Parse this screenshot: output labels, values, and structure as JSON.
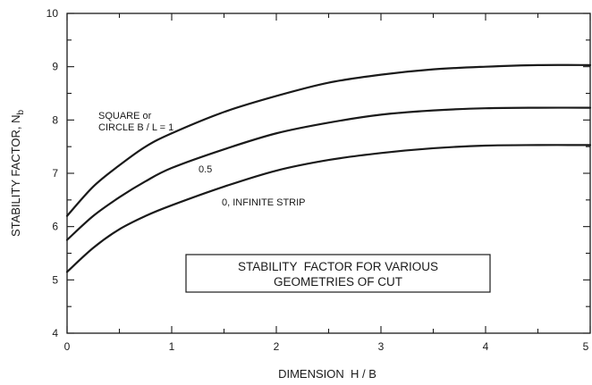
{
  "chart_data": {
    "type": "line",
    "xlabel": "DIMENSION  H / B",
    "ylabel": "STABILITY FACTOR, N",
    "ylabel_subscript": "b",
    "xlim": [
      0,
      5
    ],
    "ylim": [
      4,
      10
    ],
    "xticks": [
      "0",
      "1",
      "2",
      "3",
      "4",
      "5"
    ],
    "yticks": [
      "4",
      "5",
      "6",
      "7",
      "8",
      "9",
      "10"
    ],
    "grid": false,
    "series": [
      {
        "name": "SQUARE or CIRCLE B / L = 1",
        "label_lines": [
          "SQUARE or",
          "CIRCLE B / L = 1"
        ],
        "x": [
          0,
          0.25,
          0.5,
          0.75,
          1.0,
          1.5,
          2.0,
          2.5,
          3.0,
          3.5,
          4.0,
          4.5,
          5.0
        ],
        "y": [
          6.2,
          6.75,
          7.15,
          7.5,
          7.75,
          8.15,
          8.45,
          8.7,
          8.85,
          8.95,
          9.0,
          9.03,
          9.03
        ]
      },
      {
        "name": "0.5",
        "label_lines": [
          "0.5"
        ],
        "x": [
          0,
          0.25,
          0.5,
          0.75,
          1.0,
          1.5,
          2.0,
          2.5,
          3.0,
          3.5,
          4.0,
          4.5,
          5.0
        ],
        "y": [
          5.75,
          6.2,
          6.55,
          6.85,
          7.1,
          7.45,
          7.75,
          7.95,
          8.1,
          8.18,
          8.22,
          8.23,
          8.23
        ]
      },
      {
        "name": "0, INFINITE STRIP",
        "label_lines": [
          "0, INFINITE STRIP"
        ],
        "x": [
          0,
          0.25,
          0.5,
          0.75,
          1.0,
          1.5,
          2.0,
          2.5,
          3.0,
          3.5,
          4.0,
          4.5,
          5.0
        ],
        "y": [
          5.15,
          5.6,
          5.95,
          6.2,
          6.4,
          6.75,
          7.05,
          7.25,
          7.38,
          7.47,
          7.52,
          7.53,
          7.53
        ]
      }
    ],
    "annotation_box": [
      "STABILITY  FACTOR FOR VARIOUS",
      "GEOMETRIES OF CUT"
    ]
  }
}
